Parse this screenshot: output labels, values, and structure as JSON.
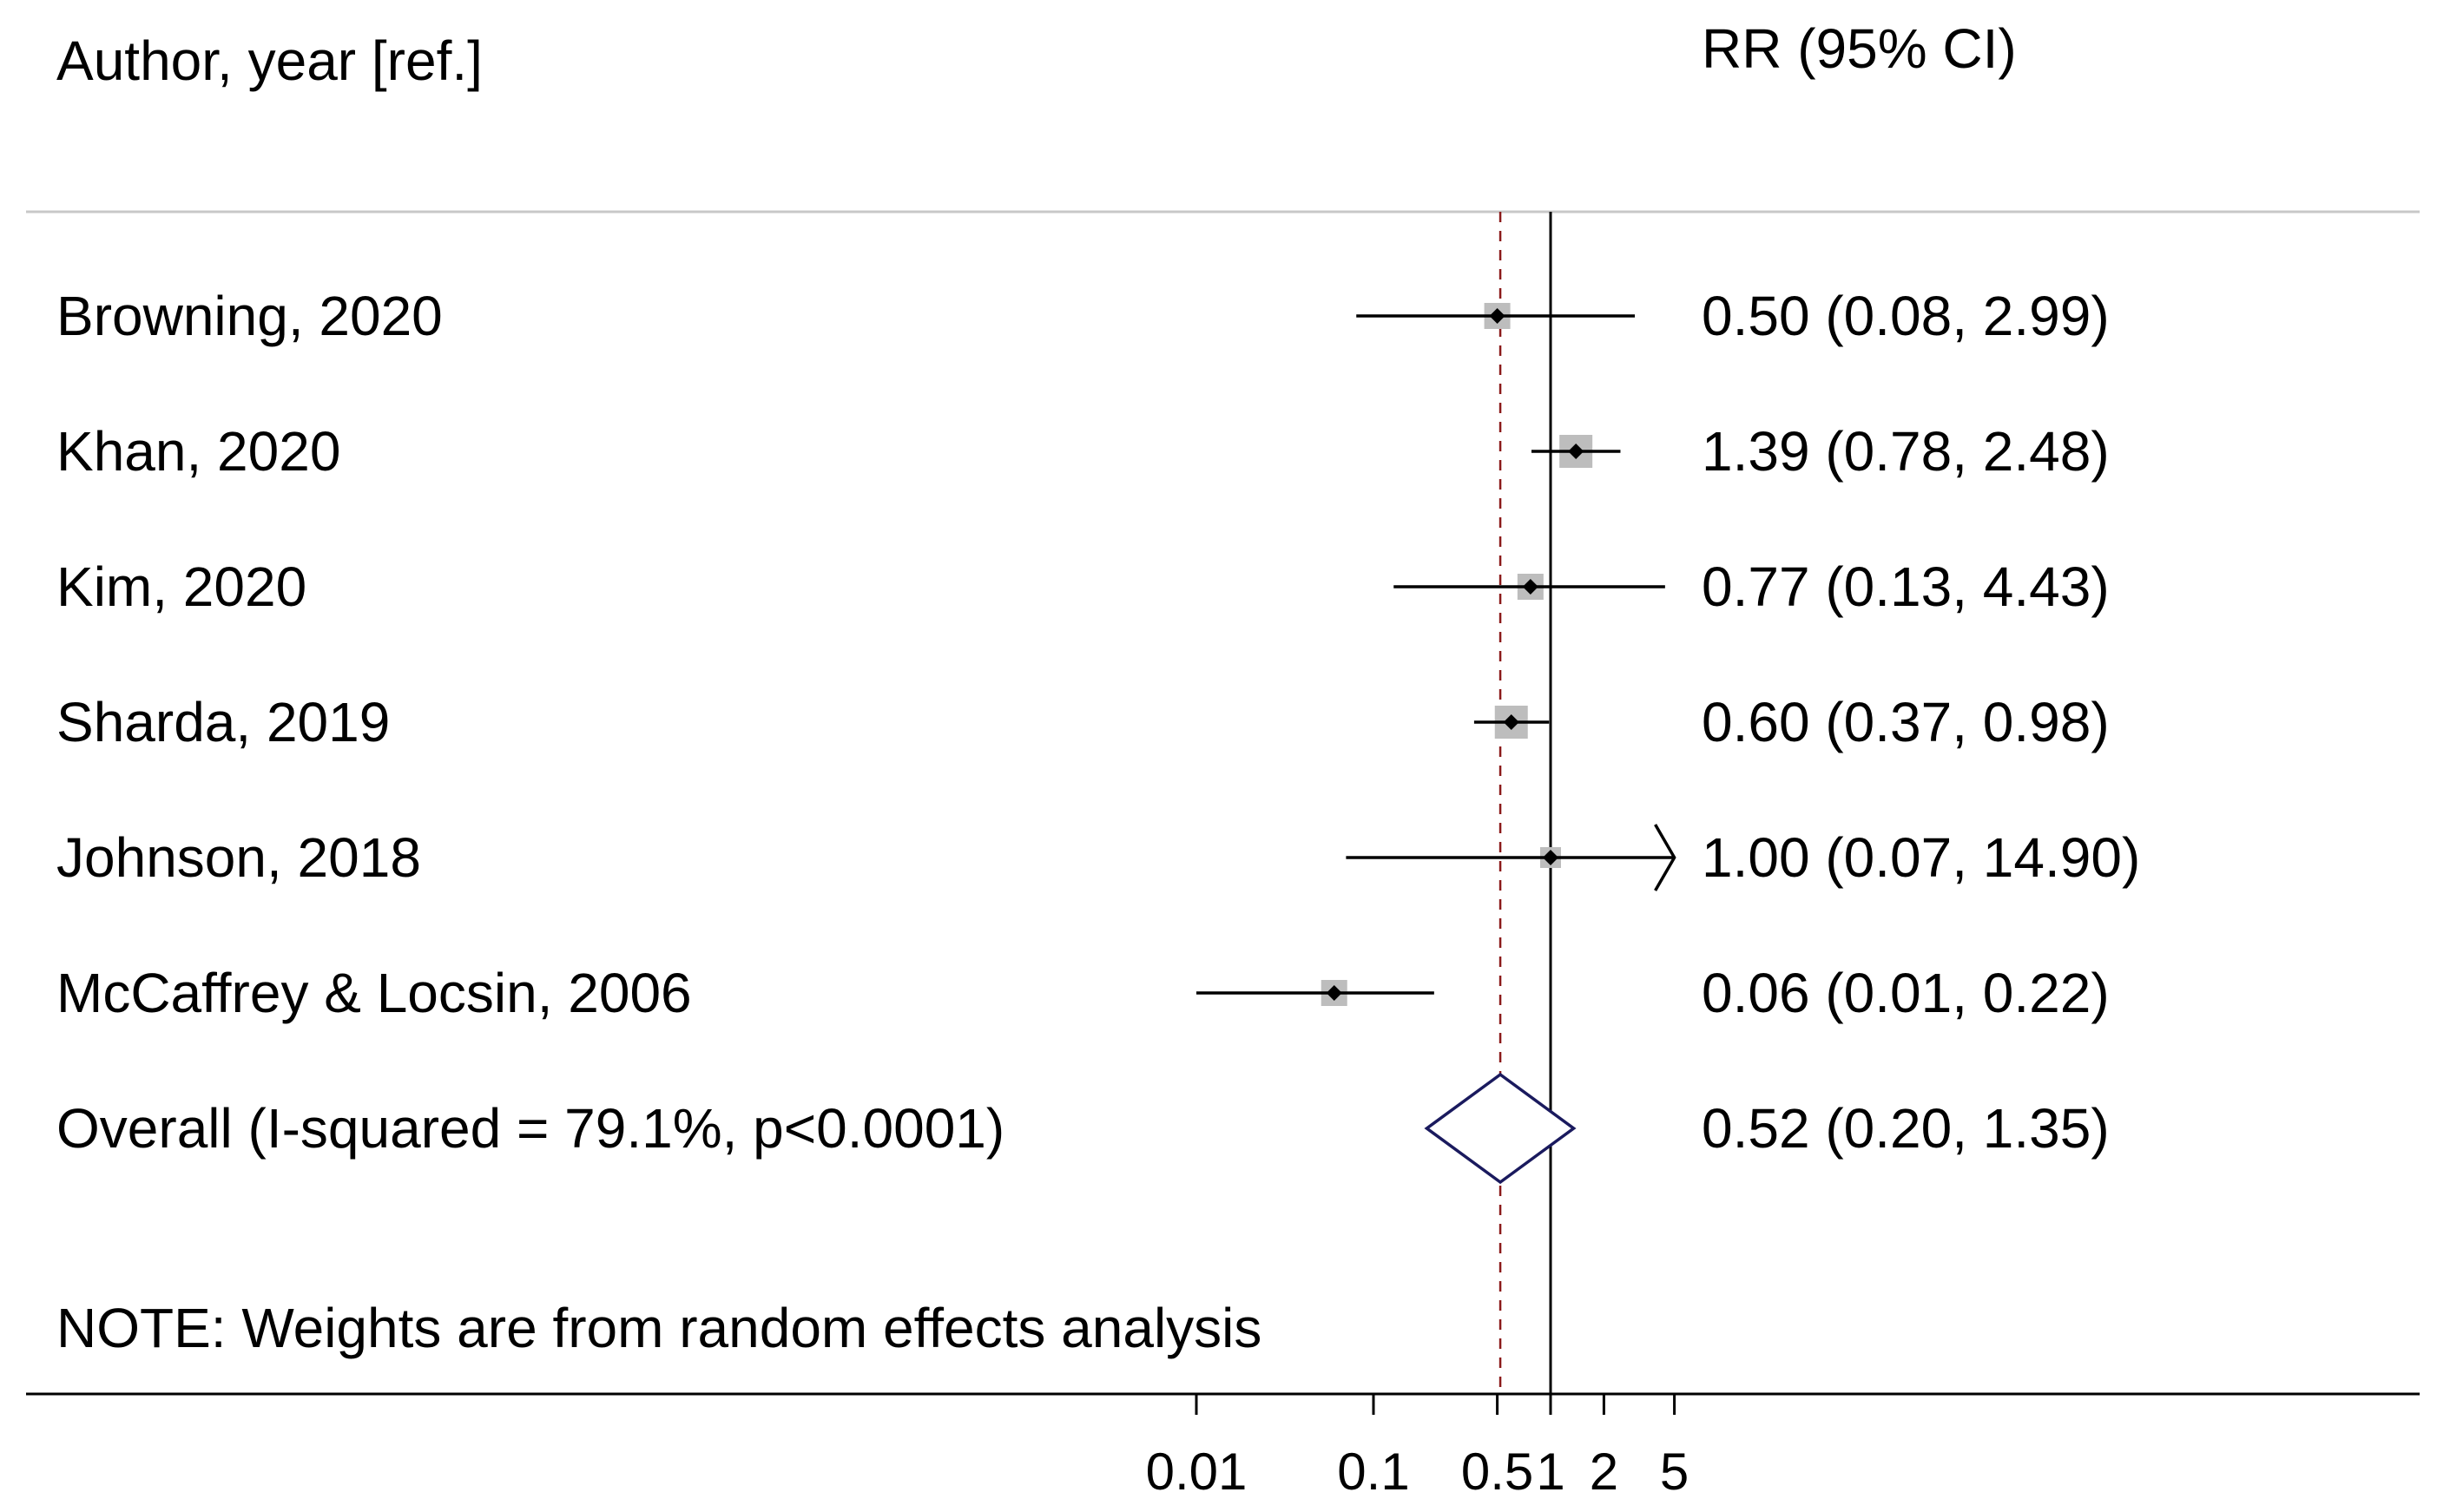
{
  "chart_data": {
    "type": "forest",
    "scale": "log",
    "headers": {
      "left": "Author, year [ref.]",
      "right": "RR (95% CI)"
    },
    "studies": [
      {
        "label": "Browning, 2020",
        "rr": 0.5,
        "lower": 0.08,
        "upper": 2.99,
        "ci_text": "0.50 (0.08, 2.99)",
        "weight": "medium"
      },
      {
        "label": "Khan, 2020",
        "rr": 1.39,
        "lower": 0.78,
        "upper": 2.48,
        "ci_text": "1.39 (0.78, 2.48)",
        "weight": "large"
      },
      {
        "label": "Kim, 2020",
        "rr": 0.77,
        "lower": 0.13,
        "upper": 4.43,
        "ci_text": "0.77 (0.13, 4.43)",
        "weight": "medium"
      },
      {
        "label": "Sharda, 2019",
        "rr": 0.6,
        "lower": 0.37,
        "upper": 0.98,
        "ci_text": "0.60 (0.37, 0.98)",
        "weight": "large"
      },
      {
        "label": "Johnson, 2018",
        "rr": 1.0,
        "lower": 0.07,
        "upper": 14.9,
        "ci_text": "1.00 (0.07, 14.90)",
        "weight": "small"
      },
      {
        "label": "McCaffrey & Locsin, 2006",
        "rr": 0.06,
        "lower": 0.01,
        "upper": 0.22,
        "ci_text": "0.06 (0.01, 0.22)",
        "weight": "medium"
      }
    ],
    "overall": {
      "label": "Overall  (I-squared = 79.1%, p<0.0001)",
      "rr": 0.52,
      "lower": 0.2,
      "upper": 1.35,
      "ci_text": "0.52 (0.20, 1.35)"
    },
    "note": "NOTE: Weights are from random effects analysis",
    "x_ticks": [
      {
        "value": 0.01,
        "label": "0.01"
      },
      {
        "value": 0.1,
        "label": "0.1"
      },
      {
        "value": 0.5,
        "label": "0.5"
      },
      {
        "value": 1,
        "label": "1"
      },
      {
        "value": 2,
        "label": "2"
      },
      {
        "value": 5,
        "label": "5"
      }
    ],
    "x_clip_max": 5,
    "null_value": 1,
    "colors": {
      "text": "#000000",
      "ci_line": "#000000",
      "weight_box": "#bdbdbd",
      "diamond": "#1a1a5e",
      "overall_line": "#8b1a1a",
      "separator": "#c8c8c8"
    }
  }
}
